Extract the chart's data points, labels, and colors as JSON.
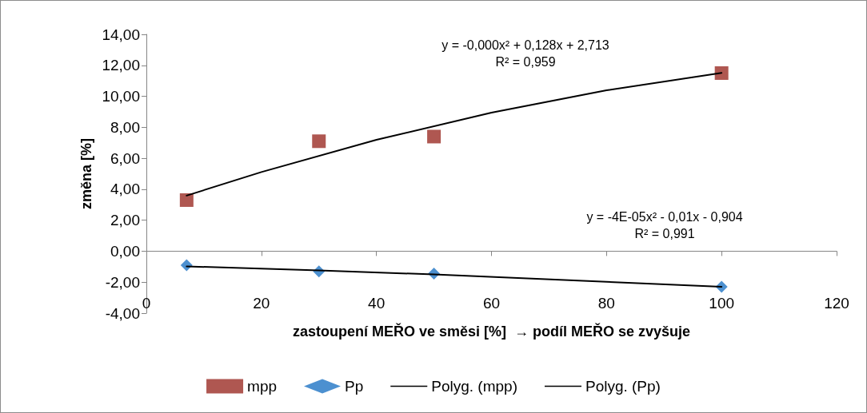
{
  "chart_data": {
    "type": "scatter",
    "xlabel": "zastoupení MEŘO ve směsi [%]  → podíl MEŘO se zvyšuje",
    "ylabel": "změna [%]",
    "xlim": [
      0,
      120
    ],
    "xticks": [
      0,
      20,
      40,
      60,
      80,
      100,
      120
    ],
    "ylim": [
      -4,
      14
    ],
    "yticks": [
      {
        "value": -4,
        "label": "-4,00"
      },
      {
        "value": -2,
        "label": "-2,00"
      },
      {
        "value": 0,
        "label": "0,00"
      },
      {
        "value": 2,
        "label": "2,00"
      },
      {
        "value": 4,
        "label": "4,00"
      },
      {
        "value": 6,
        "label": "6,00"
      },
      {
        "value": 8,
        "label": "8,00"
      },
      {
        "value": 10,
        "label": "10,00"
      },
      {
        "value": 12,
        "label": "12,00"
      },
      {
        "value": 14,
        "label": "14,00"
      }
    ],
    "legend": "bottom",
    "series": [
      {
        "name": "mpp",
        "marker": "square",
        "color": "#9b2d25",
        "x": [
          7,
          30,
          50,
          100
        ],
        "values": [
          3.3,
          7.1,
          7.4,
          11.5
        ]
      },
      {
        "name": "Pp",
        "marker": "diamond",
        "color": "#1f74c4",
        "x": [
          7,
          30,
          50,
          100
        ],
        "values": [
          -0.9,
          -1.3,
          -1.45,
          -2.3
        ]
      },
      {
        "name": "Polyg. (mpp)",
        "type": "line",
        "marker": "none",
        "line_style": "solid",
        "color": "#000000",
        "x": [
          7,
          20,
          40,
          60,
          80,
          100
        ],
        "values": [
          3.59,
          5.11,
          7.19,
          8.95,
          10.39,
          11.51
        ]
      },
      {
        "name": "Polyg. (Pp)",
        "type": "line",
        "marker": "none",
        "line_style": "solid",
        "color": "#000000",
        "x": [
          7,
          30,
          50,
          100
        ],
        "values": [
          -0.98,
          -1.24,
          -1.5,
          -2.3
        ]
      }
    ],
    "annotations": [
      "y = -0,000x² + 0,128x + 2,713\nR² = 0,959",
      "y = -4E-05x² - 0,01x - 0,904\nR² = 0,991"
    ]
  }
}
